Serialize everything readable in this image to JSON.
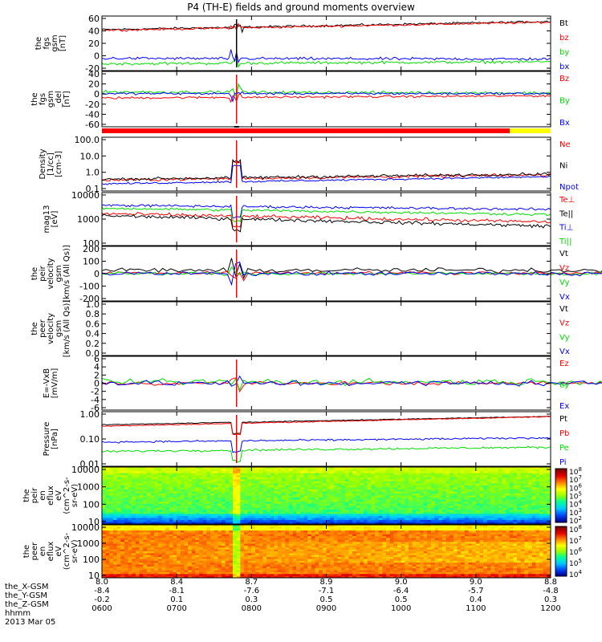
{
  "title": "P4 (TH-E) fields and ground moments overview",
  "colors": {
    "black": "#000000",
    "red": "#ff0000",
    "green": "#00dd00",
    "blue": "#0000ff",
    "status_red": "#ff0000",
    "status_yellow": "#ffff00"
  },
  "chart_data": [
    {
      "type": "line",
      "ylabel": [
        "the",
        "fgs",
        "gsm",
        "[nT]"
      ],
      "yticks": [
        "60",
        "40",
        "20",
        "0",
        "-20"
      ],
      "ylim": [
        -20,
        60
      ],
      "legend": [
        {
          "name": "Bt",
          "color": "black"
        },
        {
          "name": "bz",
          "color": "red"
        },
        {
          "name": "by",
          "color": "green"
        },
        {
          "name": "bx",
          "color": "blue"
        }
      ],
      "series": [
        {
          "name": "Bt",
          "color": "black",
          "level": 40,
          "slope": 12,
          "noise": 1.5
        },
        {
          "name": "bz",
          "color": "red",
          "level": 39,
          "slope": 12,
          "noise": 1.5
        },
        {
          "name": "by",
          "color": "green",
          "level": -10,
          "slope": 3,
          "noise": 2
        },
        {
          "name": "bx",
          "color": "blue",
          "level": -2,
          "slope": -1,
          "noise": 2
        }
      ]
    },
    {
      "type": "line",
      "ylabel": [
        "the",
        "fgs",
        "gsm",
        "_del",
        "[nT]"
      ],
      "yticks": [
        "40",
        "20",
        "0",
        "-20",
        "-40",
        "-60"
      ],
      "ylim": [
        -60,
        40
      ],
      "legend": [
        {
          "name": "Bz",
          "color": "red"
        },
        {
          "name": "By",
          "color": "green"
        },
        {
          "name": "Bx",
          "color": "blue"
        }
      ],
      "series": [
        {
          "name": "Bz",
          "color": "red",
          "level": -8,
          "slope": 4,
          "noise": 2
        },
        {
          "name": "By",
          "color": "green",
          "level": 3,
          "slope": -2,
          "noise": 2.5
        },
        {
          "name": "Bx",
          "color": "blue",
          "level": 0,
          "slope": 0,
          "noise": 2
        }
      ]
    },
    {
      "type": "line",
      "log": true,
      "ylabel": [
        "Density",
        "[1/cc]",
        "[cm-3]"
      ],
      "yticks": [
        "100.0",
        "10.0",
        "1.0",
        "0.1"
      ],
      "ylim": [
        0.1,
        100
      ],
      "legend": [
        {
          "name": "Ne",
          "color": "red"
        },
        {
          "name": "Ni",
          "color": "black"
        },
        {
          "name": "Npot",
          "color": "blue"
        }
      ],
      "series": [
        {
          "name": "Ne",
          "color": "red",
          "level": 0.4,
          "slope": 0.3,
          "noise": 0.08
        },
        {
          "name": "Ni",
          "color": "black",
          "level": 0.45,
          "slope": 0.3,
          "noise": 0.08
        },
        {
          "name": "Npot",
          "color": "blue",
          "level": 0.25,
          "slope": 0.4,
          "noise": 0.05
        }
      ]
    },
    {
      "type": "line",
      "log": true,
      "ylabel": [
        "mag13",
        "[eV]"
      ],
      "yticks": [
        "10000",
        "1000",
        "100"
      ],
      "ylim": [
        30,
        10000
      ],
      "legend": [
        {
          "name": "Te⊥",
          "color": "red"
        },
        {
          "name": "Te||",
          "color": "black"
        },
        {
          "name": "Ti⊥",
          "color": "blue"
        },
        {
          "name": "Ti||",
          "color": "green"
        }
      ],
      "series": [
        {
          "name": "Te⊥",
          "color": "red",
          "level": 1000,
          "slope": -0.4,
          "noise": 0.08
        },
        {
          "name": "Te||",
          "color": "black",
          "level": 800,
          "slope": -0.5,
          "noise": 0.08
        },
        {
          "name": "Ti⊥",
          "color": "blue",
          "level": 2500,
          "slope": -0.2,
          "noise": 0.06
        },
        {
          "name": "Ti||",
          "color": "green",
          "level": 1800,
          "slope": -0.3,
          "noise": 0.06
        }
      ]
    },
    {
      "type": "line",
      "ylabel": [
        "the",
        "peir",
        "velocity",
        "gsm",
        "[km/s (All Qs)]"
      ],
      "yticks": [
        "200",
        "100",
        "0",
        "-100",
        "-200"
      ],
      "ylim": [
        -200,
        200
      ],
      "legend": [
        {
          "name": "Vt",
          "color": "black"
        },
        {
          "name": "Vz",
          "color": "red"
        },
        {
          "name": "Vy",
          "color": "green"
        },
        {
          "name": "Vx",
          "color": "blue"
        }
      ],
      "x_end": 1140,
      "series": [
        {
          "name": "Vt",
          "color": "black",
          "level": 25,
          "slope": 0,
          "noise": 18
        },
        {
          "name": "Vz",
          "color": "red",
          "level": 5,
          "slope": 0,
          "noise": 12
        },
        {
          "name": "Vy",
          "color": "green",
          "level": 0,
          "slope": 0,
          "noise": 12
        },
        {
          "name": "Vx",
          "color": "blue",
          "level": 0,
          "slope": 0,
          "noise": 15
        }
      ]
    },
    {
      "type": "line",
      "ylabel": [
        "the",
        "peer",
        "velocity",
        "gsm",
        "[km/s (All Qs)]"
      ],
      "yticks": [
        "1.0",
        "0.8",
        "0.6",
        "0.4",
        "0.2",
        "0.0"
      ],
      "ylim": [
        0,
        1
      ],
      "legend": [
        {
          "name": "Vt",
          "color": "black"
        },
        {
          "name": "Vz",
          "color": "red"
        },
        {
          "name": "Vy",
          "color": "green"
        },
        {
          "name": "Vx",
          "color": "blue"
        }
      ],
      "series": []
    },
    {
      "type": "line",
      "ylabel": [
        "E=-VxB",
        "[mV/m]"
      ],
      "yticks": [
        "6",
        "4",
        "2",
        "0",
        "-2",
        "-4",
        "-6"
      ],
      "ylim": [
        -6,
        6
      ],
      "legend": [
        {
          "name": "Ez",
          "color": "red"
        },
        {
          "name": "Ey",
          "color": "green"
        },
        {
          "name": "Ex",
          "color": "blue"
        }
      ],
      "x_end": 1140,
      "series": [
        {
          "name": "Ez",
          "color": "red",
          "level": 0,
          "slope": 0,
          "noise": 0.4
        },
        {
          "name": "Ey",
          "color": "green",
          "level": 0.3,
          "slope": 0,
          "noise": 0.7
        },
        {
          "name": "Ex",
          "color": "blue",
          "level": 0,
          "slope": 0,
          "noise": 0.6
        }
      ]
    },
    {
      "type": "line",
      "log": true,
      "ylabel": [
        "Pressure",
        "[nPa]"
      ],
      "yticks": [
        "1.00",
        "0.10",
        "0.01"
      ],
      "ylim": [
        0.008,
        3
      ],
      "legend": [
        {
          "name": "Pt",
          "color": "black"
        },
        {
          "name": "Pb",
          "color": "red"
        },
        {
          "name": "Pe",
          "color": "green"
        },
        {
          "name": "Pi",
          "color": "blue"
        }
      ],
      "series": [
        {
          "name": "Pt",
          "color": "black",
          "level": 0.72,
          "slope": 0.4,
          "noise": 0.02
        },
        {
          "name": "Pb",
          "color": "red",
          "level": 0.62,
          "slope": 0.45,
          "noise": 0.02
        },
        {
          "name": "Pe",
          "color": "green",
          "level": 0.04,
          "slope": 0.2,
          "noise": 0.05
        },
        {
          "name": "Pi",
          "color": "blue",
          "level": 0.11,
          "slope": 0.2,
          "noise": 0.04
        }
      ]
    },
    {
      "type": "heatmap",
      "ylabel": [
        "the",
        "peir",
        "en",
        "eflux",
        "eV",
        "(cm^2-s-",
        "sr-eV)"
      ],
      "yticks": [
        "10000",
        "1000",
        "100",
        "10"
      ],
      "colorbar_ticks": [
        "10^8",
        "10^7",
        "10^6",
        "10^5",
        "10^4",
        "10^3",
        "10^2"
      ],
      "palette": "ion"
    },
    {
      "type": "heatmap",
      "ylabel": [
        "the",
        "peer",
        "en",
        "eflux",
        "eV",
        "(cm^2-s-",
        "sr-eV)"
      ],
      "yticks": [
        "10000",
        "1000",
        "100",
        "10"
      ],
      "colorbar_ticks": [
        "10^8",
        "10^7",
        "10^6",
        "10^5",
        "10^4"
      ],
      "palette": "electron"
    }
  ],
  "x_axis": {
    "ephemeris_labels": [
      "the_X-GSM",
      "the_Y-GSM",
      "the_Z-GSM",
      "hhmm",
      "2013 Mar 05"
    ],
    "columns": [
      {
        "r": "8.0",
        "x": "-8.4",
        "y": "-0.2",
        "hhmm": "0600"
      },
      {
        "r": "8.4",
        "x": "-8.1",
        "y": "0.1",
        "hhmm": "0700"
      },
      {
        "r": "8.7",
        "x": "-7.6",
        "y": "0.3",
        "hhmm": "0800"
      },
      {
        "r": "8.9",
        "x": "-7.1",
        "y": "0.5",
        "hhmm": "0900"
      },
      {
        "r": "9.0",
        "x": "-6.4",
        "y": "0.5",
        "hhmm": "1000"
      },
      {
        "r": "9.0",
        "x": "-5.7",
        "y": "0.4",
        "hhmm": "1100"
      },
      {
        "r": "8.8",
        "x": "-4.8",
        "y": "0.3",
        "hhmm": "1200"
      }
    ],
    "time_range_minutes": [
      360,
      720
    ],
    "event_time_minutes": 468
  },
  "status_bar": {
    "red_until_minutes": 1114,
    "yellow_after_minutes": 1114
  }
}
